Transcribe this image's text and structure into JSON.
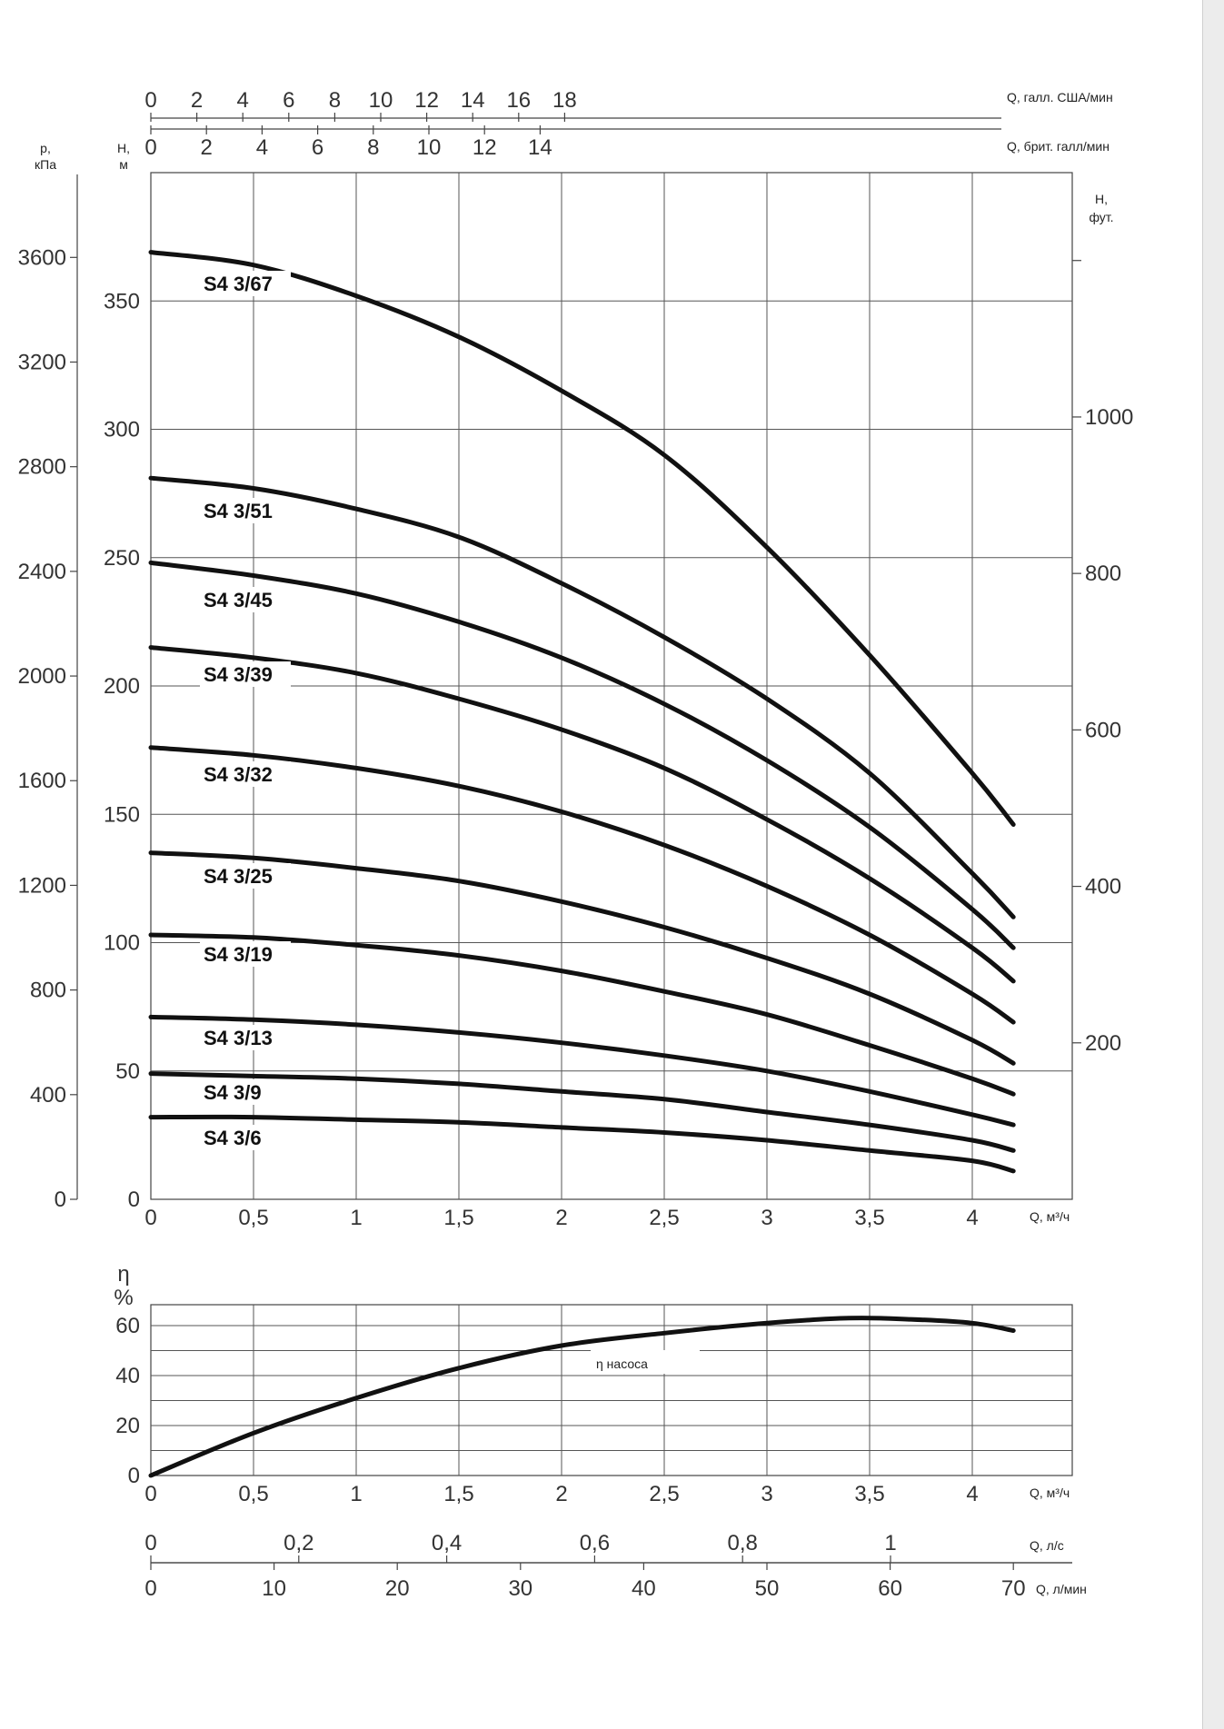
{
  "chart_data": [
    {
      "type": "line",
      "title": "",
      "xlabel": "Q, м³/ч",
      "ylabel_left_inner": "H, м",
      "ylabel_left_outer": "p, кПа",
      "ylabel_right": "H, фут.",
      "xlim": [
        0,
        4.5
      ],
      "ylim": [
        0,
        380
      ],
      "x_ticks": [
        "0",
        "0,5",
        "1",
        "1,5",
        "2",
        "2,5",
        "3",
        "3,5",
        "4"
      ],
      "y_ticks_m": [
        "0",
        "50",
        "100",
        "150",
        "200",
        "250",
        "300",
        "350"
      ],
      "y_ticks_kpa": [
        "0",
        "400",
        "800",
        "1200",
        "1600",
        "2000",
        "2400",
        "2800",
        "3200",
        "3600"
      ],
      "y_ticks_ft": [
        "200",
        "400",
        "600",
        "800",
        "1000"
      ],
      "top_axis_us_gal": {
        "label": "Q, галл. США/мин",
        "ticks": [
          "0",
          "2",
          "4",
          "6",
          "8",
          "10",
          "12",
          "14",
          "16",
          "18"
        ]
      },
      "top_axis_brit_gal": {
        "label": "Q, брит. галл/мин",
        "ticks": [
          "0",
          "2",
          "4",
          "6",
          "8",
          "10",
          "12",
          "14"
        ]
      },
      "grid": true,
      "series": [
        {
          "name": "S4 3/67",
          "x": [
            0,
            0.5,
            1,
            1.5,
            2,
            2.5,
            3,
            3.5,
            4,
            4.2
          ],
          "y": [
            369,
            364,
            352,
            336,
            315,
            290,
            254,
            212,
            166,
            146
          ]
        },
        {
          "name": "S4 3/51",
          "x": [
            0,
            0.5,
            1,
            1.5,
            2,
            2.5,
            3,
            3.5,
            4,
            4.2
          ],
          "y": [
            281,
            277,
            269,
            258,
            240,
            219,
            195,
            166,
            127,
            110
          ]
        },
        {
          "name": "S4 3/45",
          "x": [
            0,
            0.5,
            1,
            1.5,
            2,
            2.5,
            3,
            3.5,
            4,
            4.2
          ],
          "y": [
            248,
            243,
            236,
            225,
            211,
            193,
            171,
            145,
            113,
            98
          ]
        },
        {
          "name": "S4 3/39",
          "x": [
            0,
            0.5,
            1,
            1.5,
            2,
            2.5,
            3,
            3.5,
            4,
            4.2
          ],
          "y": [
            215,
            211,
            205,
            195,
            183,
            168,
            148,
            125,
            98,
            85
          ]
        },
        {
          "name": "S4 3/32",
          "x": [
            0,
            0.5,
            1,
            1.5,
            2,
            2.5,
            3,
            3.5,
            4,
            4.2
          ],
          "y": [
            176,
            173,
            168,
            161,
            151,
            138,
            122,
            103,
            80,
            69
          ]
        },
        {
          "name": "S4 3/25",
          "x": [
            0,
            0.5,
            1,
            1.5,
            2,
            2.5,
            3,
            3.5,
            4,
            4.2
          ],
          "y": [
            135,
            133,
            129,
            124,
            116,
            106,
            94,
            80,
            62,
            53
          ]
        },
        {
          "name": "S4 3/19",
          "x": [
            0,
            0.5,
            1,
            1.5,
            2,
            2.5,
            3,
            3.5,
            4,
            4.2
          ],
          "y": [
            103,
            102,
            99,
            95,
            89,
            81,
            72,
            60,
            47,
            41
          ]
        },
        {
          "name": "S4 3/13",
          "x": [
            0,
            0.5,
            1,
            1.5,
            2,
            2.5,
            3,
            3.5,
            4,
            4.2
          ],
          "y": [
            71,
            70,
            68,
            65,
            61,
            56,
            50,
            42,
            33,
            29
          ]
        },
        {
          "name": "S4 3/9",
          "x": [
            0,
            0.5,
            1,
            1.5,
            2,
            2.5,
            3,
            3.5,
            4,
            4.2
          ],
          "y": [
            49,
            48,
            47,
            45,
            42,
            39,
            34,
            29,
            23,
            19
          ]
        },
        {
          "name": "S4 3/6",
          "x": [
            0,
            0.5,
            1,
            1.5,
            2,
            2.5,
            3,
            3.5,
            4,
            4.2
          ],
          "y": [
            32,
            32,
            31,
            30,
            28,
            26,
            23,
            19,
            15,
            11
          ]
        }
      ]
    },
    {
      "type": "line",
      "title": "",
      "ylabel": "η %",
      "xlabel": "Q, м³/ч",
      "xlim": [
        0,
        4.5
      ],
      "ylim": [
        0,
        70
      ],
      "x_ticks": [
        "0",
        "0,5",
        "1",
        "1,5",
        "2",
        "2,5",
        "3",
        "3,5",
        "4"
      ],
      "y_ticks": [
        "0",
        "20",
        "40",
        "60"
      ],
      "axis_ls": {
        "label": "Q, л/с",
        "ticks": [
          "0",
          "0,2",
          "0,4",
          "0,6",
          "0,8",
          "1"
        ]
      },
      "axis_lmin": {
        "label": "Q, л/мин",
        "ticks": [
          "0",
          "10",
          "20",
          "30",
          "40",
          "50",
          "60",
          "70"
        ]
      },
      "grid": true,
      "series": [
        {
          "name": "η насоса",
          "x": [
            0,
            0.5,
            1,
            1.5,
            2,
            2.5,
            3,
            3.4,
            3.7,
            4,
            4.2
          ],
          "y": [
            0,
            17,
            31,
            43,
            52,
            57,
            61,
            63,
            62.5,
            61,
            58
          ]
        }
      ]
    }
  ],
  "colors": {
    "curve": "#111111",
    "grid": "#555555",
    "axis": "#444444",
    "strip": "#ececec"
  }
}
